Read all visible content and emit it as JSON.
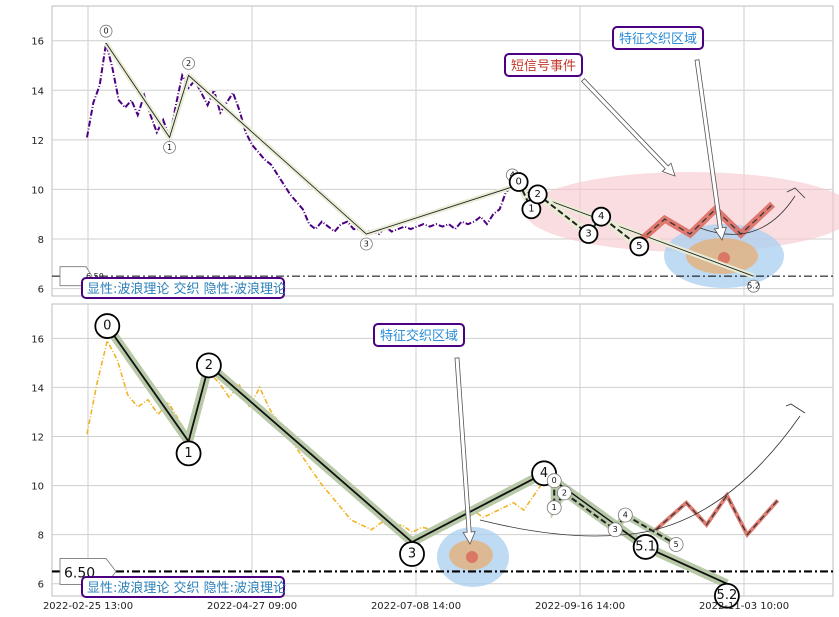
{
  "chart_data": [
    {
      "type": "line",
      "panel": "top",
      "ylim": [
        5.7,
        17.4
      ],
      "y_ticks": [
        6,
        8,
        10,
        12,
        14,
        16
      ],
      "grid": true,
      "colors": {
        "price": "#4b0082",
        "wave": "#222222",
        "wave_fill": "#e9edd5",
        "signal_zone": "#f6c6cc",
        "feature_zone": "#a9cff0",
        "feature_core": "#e5b07a",
        "projection": "#d9665a"
      },
      "series": [
        {
          "values": [
            [
              0,
              12.1
            ],
            [
              1,
              13.5
            ],
            [
              2,
              14.2
            ],
            [
              3,
              15.9
            ],
            [
              4,
              14.9
            ],
            [
              5,
              13.6
            ],
            [
              6,
              13.3
            ],
            [
              7,
              13.6
            ],
            [
              8,
              13.0
            ],
            [
              9,
              13.8
            ],
            [
              10,
              13.0
            ],
            [
              11,
              12.3
            ],
            [
              12,
              12.8
            ],
            [
              13,
              12.1
            ],
            [
              14,
              13.4
            ],
            [
              15,
              14.6
            ],
            [
              16,
              14.1
            ],
            [
              17,
              14.4
            ],
            [
              18,
              13.9
            ],
            [
              19,
              13.4
            ],
            [
              20,
              14.0
            ],
            [
              21,
              13.1
            ],
            [
              22,
              13.5
            ],
            [
              23,
              13.9
            ],
            [
              24,
              13.2
            ],
            [
              25,
              12.3
            ],
            [
              26,
              11.8
            ],
            [
              27,
              11.5
            ],
            [
              28,
              11.2
            ],
            [
              29,
              11.0
            ],
            [
              30,
              10.6
            ],
            [
              31,
              10.2
            ],
            [
              32,
              9.8
            ],
            [
              33,
              9.5
            ],
            [
              34,
              9.2
            ],
            [
              35,
              8.6
            ],
            [
              36,
              8.4
            ],
            [
              37,
              8.7
            ],
            [
              38,
              8.5
            ],
            [
              39,
              8.3
            ],
            [
              40,
              8.6
            ],
            [
              41,
              8.7
            ],
            [
              42,
              8.4
            ],
            [
              43,
              8.4
            ],
            [
              44,
              8.3
            ],
            [
              45,
              8.3
            ],
            [
              46,
              8.2
            ],
            [
              47,
              8.5
            ],
            [
              48,
              8.3
            ],
            [
              49,
              8.4
            ],
            [
              50,
              8.5
            ],
            [
              51,
              8.4
            ],
            [
              52,
              8.5
            ],
            [
              53,
              8.6
            ],
            [
              54,
              8.5
            ],
            [
              55,
              8.6
            ],
            [
              56,
              8.5
            ],
            [
              57,
              8.6
            ],
            [
              58,
              8.4
            ],
            [
              59,
              8.7
            ],
            [
              60,
              8.6
            ],
            [
              61,
              8.7
            ],
            [
              62,
              8.9
            ],
            [
              63,
              8.6
            ],
            [
              64,
              9.0
            ],
            [
              65,
              9.2
            ],
            [
              66,
              9.9
            ],
            [
              67,
              10.1
            ]
          ]
        }
      ],
      "wave_points": [
        {
          "label": "0",
          "x": 3,
          "y": 15.9
        },
        {
          "label": "1",
          "x": 13,
          "y": 12.1
        },
        {
          "label": "2",
          "x": 16,
          "y": 14.6
        },
        {
          "label": "3",
          "x": 44,
          "y": 8.2
        },
        {
          "label": "4",
          "x": 67,
          "y": 10.1
        },
        {
          "label": "5.2",
          "x": 105,
          "y": 6.5
        }
      ],
      "small_wave_points": [
        {
          "label": "0",
          "x": 68,
          "y": 10.3
        },
        {
          "label": "1",
          "x": 70,
          "y": 9.2
        },
        {
          "label": "2",
          "x": 71,
          "y": 9.8
        },
        {
          "label": "3",
          "x": 79,
          "y": 8.2
        },
        {
          "label": "4",
          "x": 81,
          "y": 8.9
        },
        {
          "label": "5",
          "x": 87,
          "y": 7.7
        }
      ],
      "projection_path": [
        [
          87,
          7.9
        ],
        [
          91,
          8.8
        ],
        [
          95,
          8.2
        ],
        [
          99,
          9.2
        ],
        [
          103,
          8.2
        ],
        [
          108,
          9.4
        ]
      ],
      "reference_line": {
        "value": 6.5,
        "label": "6.50"
      },
      "annotations": [
        {
          "text": "短信号事件",
          "color": "#c0392b"
        },
        {
          "text": "特征交织区域",
          "color": "#2a8bd4"
        }
      ],
      "legend_text": "显性:波浪理论 交织 隐性:波浪理论"
    },
    {
      "type": "line",
      "panel": "bottom",
      "ylim": [
        5.5,
        17.4
      ],
      "y_ticks": [
        6,
        8,
        10,
        12,
        14,
        16
      ],
      "grid": true,
      "colors": {
        "price": "#f0b429",
        "wave": "#111111",
        "wave_fill": "#b8c9a8",
        "feature_zone": "#a9cff0",
        "feature_core": "#e5b07a",
        "projection": "#d9665a"
      },
      "series": [
        {
          "values": [
            [
              0,
              12.1
            ],
            [
              1,
              14.2
            ],
            [
              2,
              15.9
            ],
            [
              3,
              15.1
            ],
            [
              4,
              13.7
            ],
            [
              5,
              13.2
            ],
            [
              6,
              13.5
            ],
            [
              7,
              12.9
            ],
            [
              8,
              13.4
            ],
            [
              9,
              12.7
            ],
            [
              10,
              12.0
            ],
            [
              11,
              12.9
            ],
            [
              12,
              14.6
            ],
            [
              13,
              14.2
            ],
            [
              14,
              13.6
            ],
            [
              15,
              14.1
            ],
            [
              16,
              13.2
            ],
            [
              17,
              14.0
            ],
            [
              18,
              13.1
            ],
            [
              19,
              12.5
            ],
            [
              20,
              11.9
            ],
            [
              21,
              11.3
            ],
            [
              22,
              10.7
            ],
            [
              23,
              10.1
            ],
            [
              24,
              9.6
            ],
            [
              25,
              9.1
            ],
            [
              26,
              8.6
            ],
            [
              27,
              8.4
            ],
            [
              28,
              8.2
            ],
            [
              29,
              8.5
            ],
            [
              30,
              8.3
            ],
            [
              31,
              8.4
            ],
            [
              32,
              8.1
            ],
            [
              33,
              8.3
            ],
            [
              34,
              8.2
            ],
            [
              35,
              8.4
            ],
            [
              36,
              8.6
            ],
            [
              37,
              8.8
            ],
            [
              38,
              9.0
            ],
            [
              39,
              8.7
            ],
            [
              40,
              8.9
            ],
            [
              41,
              9.1
            ],
            [
              42,
              9.3
            ],
            [
              43,
              9.0
            ],
            [
              44,
              9.6
            ],
            [
              45,
              10.2
            ]
          ]
        }
      ],
      "wave_points": [
        {
          "label": "0",
          "x": 2,
          "y": 16.5
        },
        {
          "label": "1",
          "x": 10,
          "y": 11.8
        },
        {
          "label": "2",
          "x": 12,
          "y": 14.9
        },
        {
          "label": "3",
          "x": 32,
          "y": 7.7
        },
        {
          "label": "4",
          "x": 45,
          "y": 10.5
        },
        {
          "label": "5.1",
          "x": 55,
          "y": 7.5
        },
        {
          "label": "5.2",
          "x": 63,
          "y": 6.0
        }
      ],
      "small_wave_points": [
        {
          "label": "0",
          "x": 46,
          "y": 10.2
        },
        {
          "label": "1",
          "x": 46,
          "y": 9.1
        },
        {
          "label": "2",
          "x": 47,
          "y": 9.7
        },
        {
          "label": "3",
          "x": 52,
          "y": 8.2
        },
        {
          "label": "4",
          "x": 53,
          "y": 8.8
        },
        {
          "label": "5",
          "x": 58,
          "y": 7.6
        }
      ],
      "projection_path": [
        [
          56,
          8.2
        ],
        [
          59,
          9.3
        ],
        [
          61,
          8.4
        ],
        [
          63,
          9.6
        ],
        [
          65,
          8.0
        ],
        [
          68,
          9.4
        ]
      ],
      "reference_line": {
        "value": 6.5,
        "label": "6.50"
      },
      "annotations": [
        {
          "text": "特征交织区域",
          "color": "#2a8bd4"
        }
      ],
      "legend_text": "显性:波浪理论 交织 隐性:波浪理论"
    }
  ],
  "x_tick_labels": [
    "2022-02-25 13:00",
    "2022-04-27 09:00",
    "2022-07-08 14:00",
    "2022-09-16 14:00",
    "2022-11-03 10:00"
  ]
}
